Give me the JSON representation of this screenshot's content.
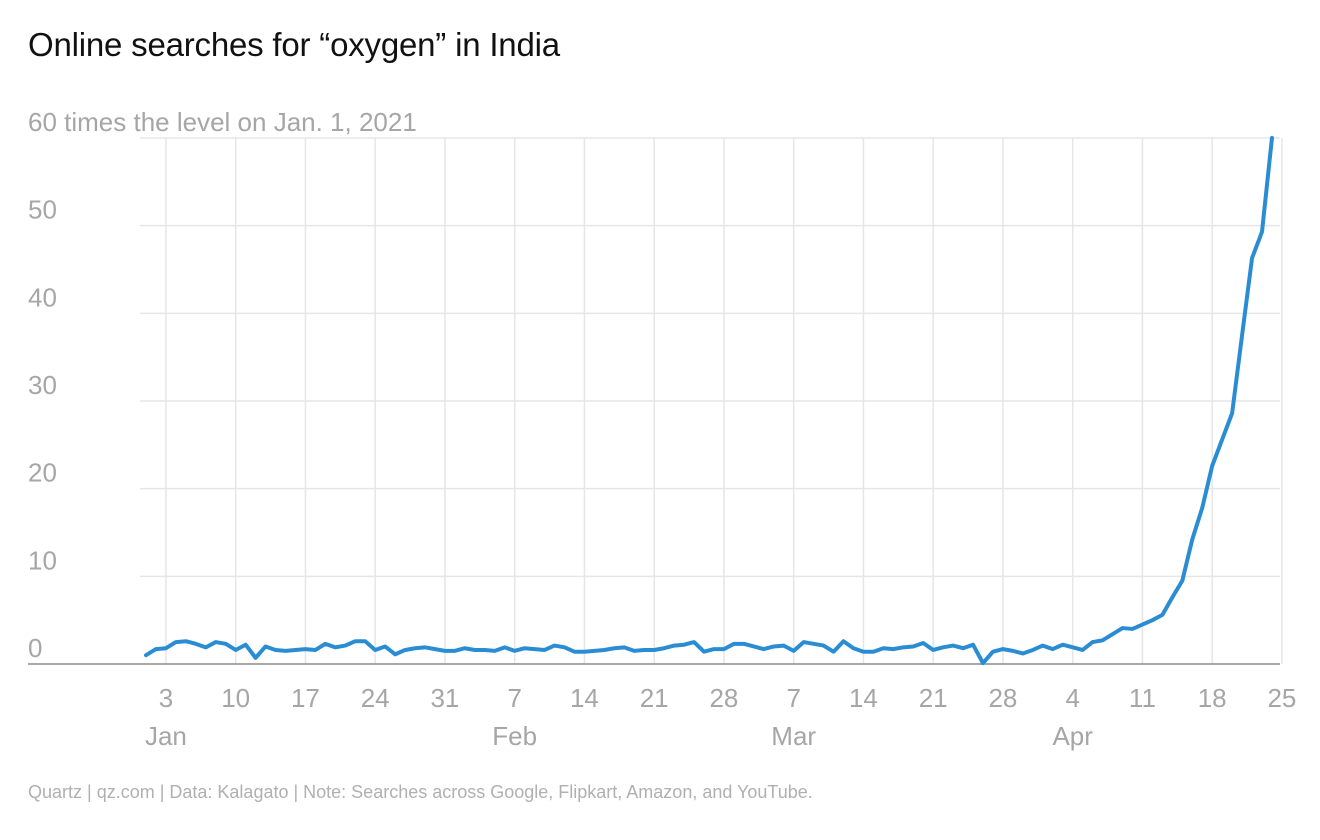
{
  "title": "Online searches for “oxygen” in India",
  "footer": "Quartz | qz.com | Data: Kalagato | Note: Searches across Google, Flipkart, Amazon, and YouTube.",
  "colors": {
    "line": "#2a8dd4",
    "grid": "#e6e6e6",
    "axis_text": "#a6a6a6"
  },
  "chart_data": {
    "type": "line",
    "title": "Online searches for “oxygen” in India",
    "ylabel": "60 times the level on Jan. 1, 2021",
    "xlabel": "",
    "ylim": [
      0,
      60
    ],
    "yticks": [
      {
        "value": 0,
        "label": "0"
      },
      {
        "value": 10,
        "label": "10"
      },
      {
        "value": 20,
        "label": "20"
      },
      {
        "value": 30,
        "label": "30"
      },
      {
        "value": 40,
        "label": "40"
      },
      {
        "value": 50,
        "label": "50"
      },
      {
        "value": 60,
        "label": "60 times the level on Jan. 1, 2021"
      }
    ],
    "xlim": [
      "2021-01-01",
      "2021-04-23"
    ],
    "xticks": [
      {
        "date": "2021-01-03",
        "label": "3",
        "month": "Jan"
      },
      {
        "date": "2021-01-10",
        "label": "10"
      },
      {
        "date": "2021-01-17",
        "label": "17"
      },
      {
        "date": "2021-01-24",
        "label": "24"
      },
      {
        "date": "2021-01-31",
        "label": "31"
      },
      {
        "date": "2021-02-07",
        "label": "7",
        "month": "Feb"
      },
      {
        "date": "2021-02-14",
        "label": "14"
      },
      {
        "date": "2021-02-21",
        "label": "21"
      },
      {
        "date": "2021-02-28",
        "label": "28"
      },
      {
        "date": "2021-03-07",
        "label": "7",
        "month": "Mar"
      },
      {
        "date": "2021-03-14",
        "label": "14"
      },
      {
        "date": "2021-03-21",
        "label": "21"
      },
      {
        "date": "2021-03-28",
        "label": "28"
      },
      {
        "date": "2021-04-04",
        "label": "4",
        "month": "Apr"
      },
      {
        "date": "2021-04-11",
        "label": "11"
      },
      {
        "date": "2021-04-18",
        "label": "18"
      },
      {
        "date": "2021-04-25",
        "label": "25"
      }
    ],
    "grid": true,
    "legend": "none",
    "series": [
      {
        "start_date": "2021-01-01",
        "values": [
          1.0,
          1.7,
          1.8,
          2.5,
          2.6,
          2.3,
          1.9,
          2.5,
          2.3,
          1.6,
          2.2,
          0.7,
          2.0,
          1.6,
          1.5,
          1.6,
          1.7,
          1.6,
          2.3,
          1.9,
          2.1,
          2.6,
          2.6,
          1.6,
          2.0,
          1.1,
          1.6,
          1.8,
          1.9,
          1.7,
          1.5,
          1.5,
          1.8,
          1.6,
          1.6,
          1.5,
          1.9,
          1.5,
          1.8,
          1.7,
          1.6,
          2.1,
          1.9,
          1.4,
          1.4,
          1.5,
          1.6,
          1.8,
          1.9,
          1.5,
          1.6,
          1.6,
          1.8,
          2.1,
          2.2,
          2.5,
          1.4,
          1.7,
          1.7,
          2.3,
          2.3,
          2.0,
          1.7,
          2.0,
          2.1,
          1.5,
          2.5,
          2.3,
          2.1,
          1.4,
          2.6,
          1.8,
          1.4,
          1.4,
          1.8,
          1.7,
          1.9,
          2.0,
          2.4,
          1.6,
          1.9,
          2.1,
          1.8,
          2.2,
          0.1,
          1.4,
          1.7,
          1.5,
          1.2,
          1.6,
          2.1,
          1.7,
          2.2,
          1.9,
          1.6,
          2.5,
          2.7,
          3.4,
          4.1,
          4.0,
          4.5,
          5.0,
          5.6,
          7.6,
          9.5,
          14.2,
          17.8,
          22.6,
          25.6,
          28.6,
          37.5,
          46.3,
          49.3,
          60.0
        ]
      }
    ]
  }
}
